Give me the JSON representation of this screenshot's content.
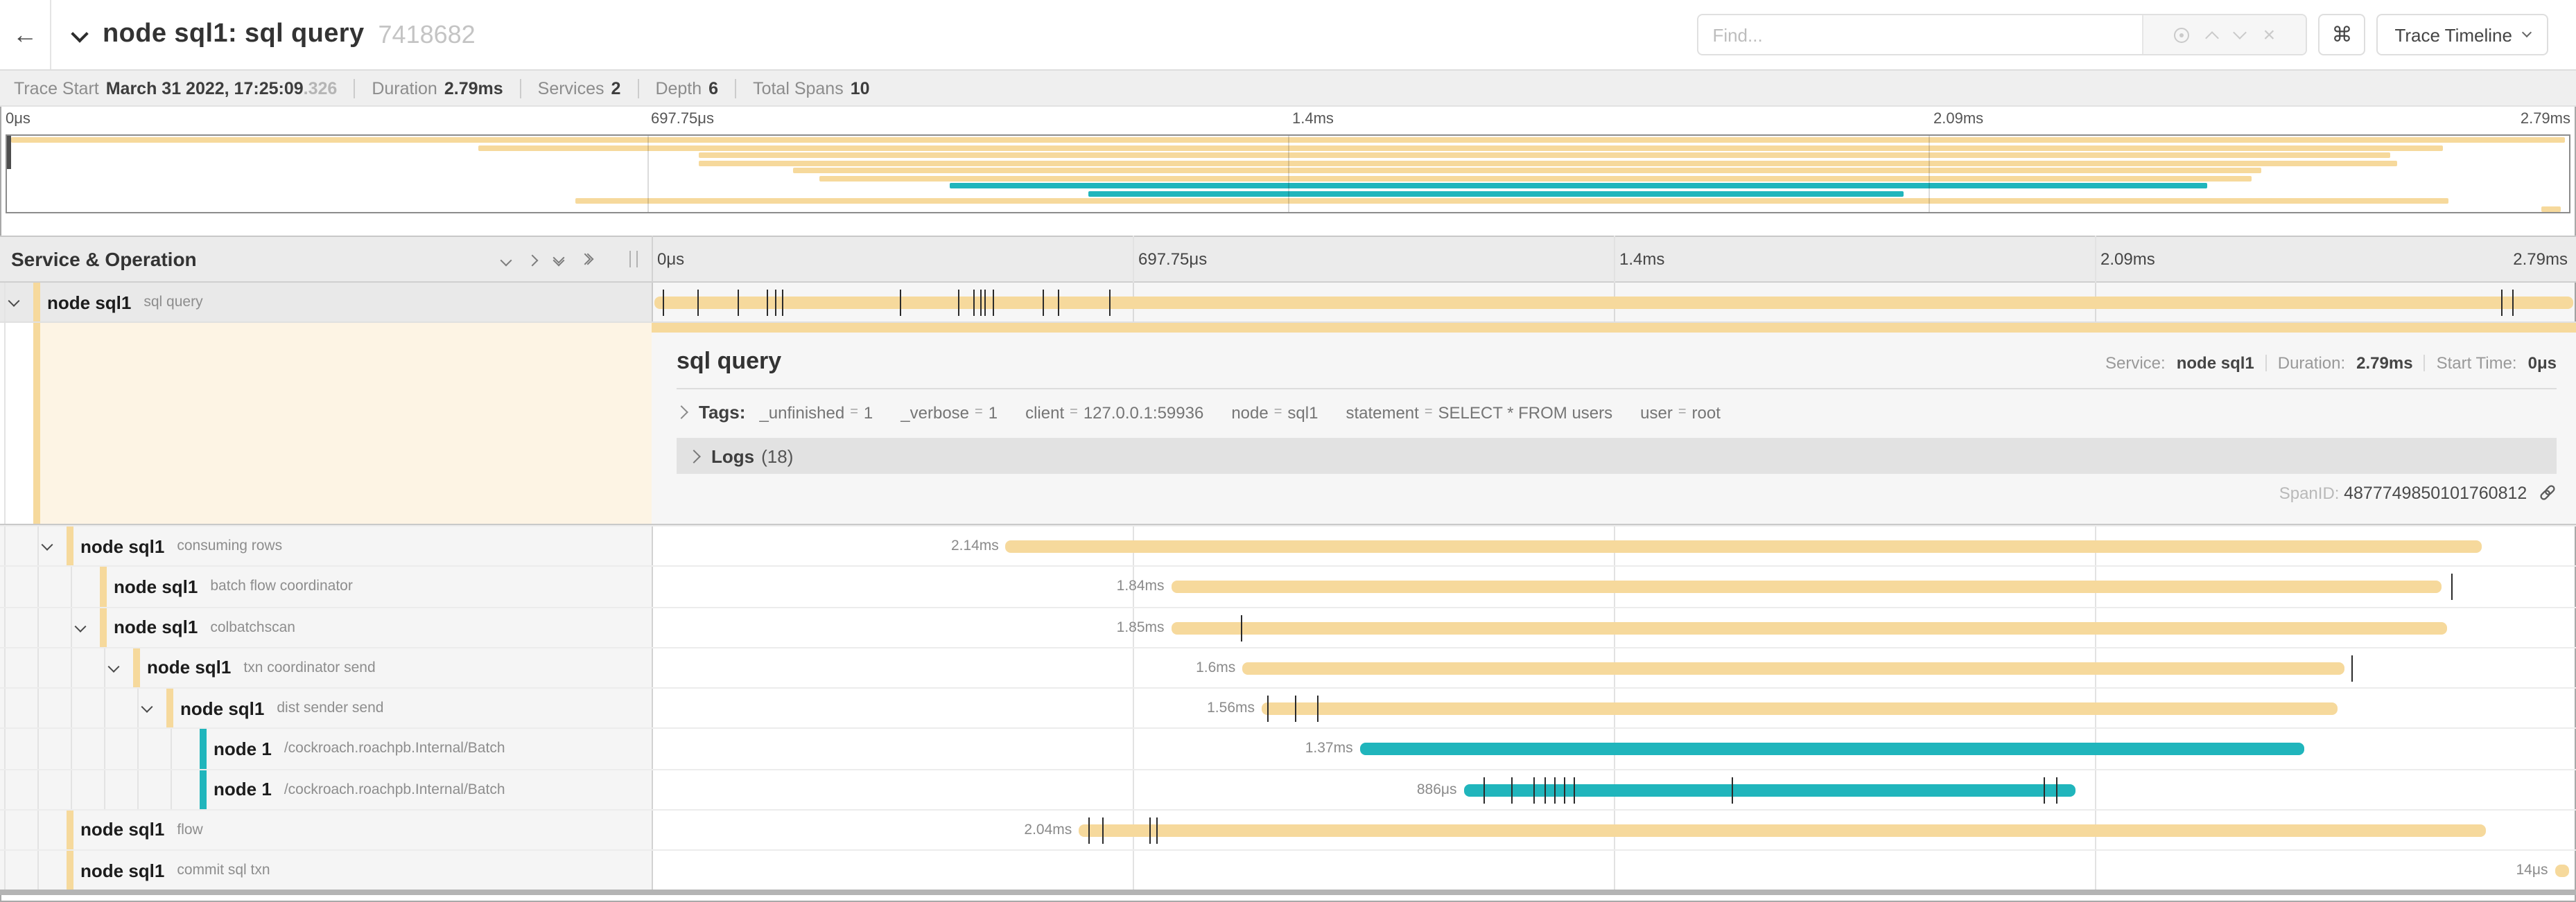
{
  "header": {
    "back_icon": "left-arrow",
    "title": "node sql1: sql query",
    "trace_id": "7418682",
    "find_placeholder": "Find...",
    "cmd_glyph": "⌘",
    "view_selector": "Trace Timeline"
  },
  "info_bar": {
    "items": [
      {
        "label": "Trace Start",
        "value": "March 31 2022, 17:25:09",
        "muted_suffix": ".326"
      },
      {
        "label": "Duration",
        "value": "2.79ms"
      },
      {
        "label": "Services",
        "value": "2"
      },
      {
        "label": "Depth",
        "value": "6"
      },
      {
        "label": "Total Spans",
        "value": "10"
      }
    ]
  },
  "axis": {
    "ticks": [
      {
        "label": "0μs",
        "pct": 0
      },
      {
        "label": "697.75μs",
        "pct": 25
      },
      {
        "label": "1.4ms",
        "pct": 50
      },
      {
        "label": "2.09ms",
        "pct": 75
      },
      {
        "label": "2.79ms",
        "pct": 100
      }
    ]
  },
  "left_panel": {
    "header": "Service & Operation"
  },
  "detail": {
    "title": "sql query",
    "service_label": "Service:",
    "service_value": "node sql1",
    "duration_label": "Duration:",
    "duration_value": "2.79ms",
    "start_label": "Start Time:",
    "start_value": "0μs",
    "tags_label": "Tags:",
    "tags": [
      {
        "key": "_unfinished",
        "value": "1"
      },
      {
        "key": "_verbose",
        "value": "1"
      },
      {
        "key": "client",
        "value": "127.0.0.1:59936"
      },
      {
        "key": "node",
        "value": "sql1"
      },
      {
        "key": "statement",
        "value": "SELECT * FROM users"
      },
      {
        "key": "user",
        "value": "root"
      }
    ],
    "logs_label": "Logs",
    "logs_count": "(18)",
    "span_id_label": "SpanID:",
    "span_id_value": "4877749850101760812"
  },
  "colors": {
    "tan": "#f6d99c",
    "teal": "#20b5bc",
    "cream": "#fdf4e4"
  },
  "spans": [
    {
      "service": "node sql1",
      "operation": "sql query",
      "depth": 0,
      "color": "tan",
      "expandable": true,
      "selected": true,
      "start_pct": 0.15,
      "width_pct": 99.7,
      "duration": "2.79ms",
      "show_duration": false,
      "ticks": [
        0.6,
        2.4,
        4.5,
        6.0,
        6.4,
        6.8,
        12.9,
        15.9,
        16.7,
        17.1,
        17.3,
        17.7,
        20.3,
        21.1,
        23.8,
        96.1,
        96.7
      ]
    },
    {
      "service": "node sql1",
      "operation": "consuming rows",
      "depth": 1,
      "color": "tan",
      "expandable": true,
      "start_pct": 18.4,
      "width_pct": 76.7,
      "duration": "2.14ms",
      "show_duration": true,
      "ticks": []
    },
    {
      "service": "node sql1",
      "operation": "batch flow coordinator",
      "depth": 2,
      "color": "tan",
      "expandable": false,
      "start_pct": 27.0,
      "width_pct": 66.0,
      "duration": "1.84ms",
      "show_duration": true,
      "ticks": [
        93.5
      ]
    },
    {
      "service": "node sql1",
      "operation": "colbatchscan",
      "depth": 2,
      "color": "tan",
      "expandable": true,
      "start_pct": 27.0,
      "width_pct": 66.3,
      "duration": "1.85ms",
      "show_duration": true,
      "ticks": [
        30.6
      ]
    },
    {
      "service": "node sql1",
      "operation": "txn coordinator send",
      "depth": 3,
      "color": "tan",
      "expandable": true,
      "start_pct": 30.7,
      "width_pct": 57.3,
      "duration": "1.6ms",
      "show_duration": true,
      "ticks": [
        88.3
      ]
    },
    {
      "service": "node sql1",
      "operation": "dist sender send",
      "depth": 4,
      "color": "tan",
      "expandable": true,
      "start_pct": 31.7,
      "width_pct": 55.9,
      "duration": "1.56ms",
      "show_duration": true,
      "ticks": [
        32.0,
        33.4,
        34.6
      ]
    },
    {
      "service": "node 1",
      "operation": "/cockroach.roachpb.Internal/Batch",
      "depth": 5,
      "color": "teal",
      "expandable": false,
      "start_pct": 36.8,
      "width_pct": 49.1,
      "duration": "1.37ms",
      "show_duration": true,
      "ticks": []
    },
    {
      "service": "node 1",
      "operation": "/cockroach.roachpb.Internal/Batch",
      "depth": 5,
      "color": "teal",
      "expandable": false,
      "start_pct": 42.2,
      "width_pct": 31.8,
      "duration": "886μs",
      "show_duration": true,
      "ticks": [
        43.2,
        44.7,
        45.8,
        46.4,
        46.9,
        47.4,
        47.9,
        56.1,
        72.3,
        73.0
      ]
    },
    {
      "service": "node sql1",
      "operation": "flow",
      "depth": 1,
      "color": "tan",
      "expandable": false,
      "start_pct": 22.2,
      "width_pct": 73.1,
      "duration": "2.04ms",
      "show_duration": true,
      "ticks": [
        22.7,
        23.4,
        25.9,
        26.2
      ]
    },
    {
      "service": "node sql1",
      "operation": "commit sql txn",
      "depth": 1,
      "color": "tan",
      "expandable": false,
      "start_pct": 98.9,
      "width_pct": 0.75,
      "duration": "14μs",
      "show_duration": true,
      "ticks": []
    }
  ]
}
